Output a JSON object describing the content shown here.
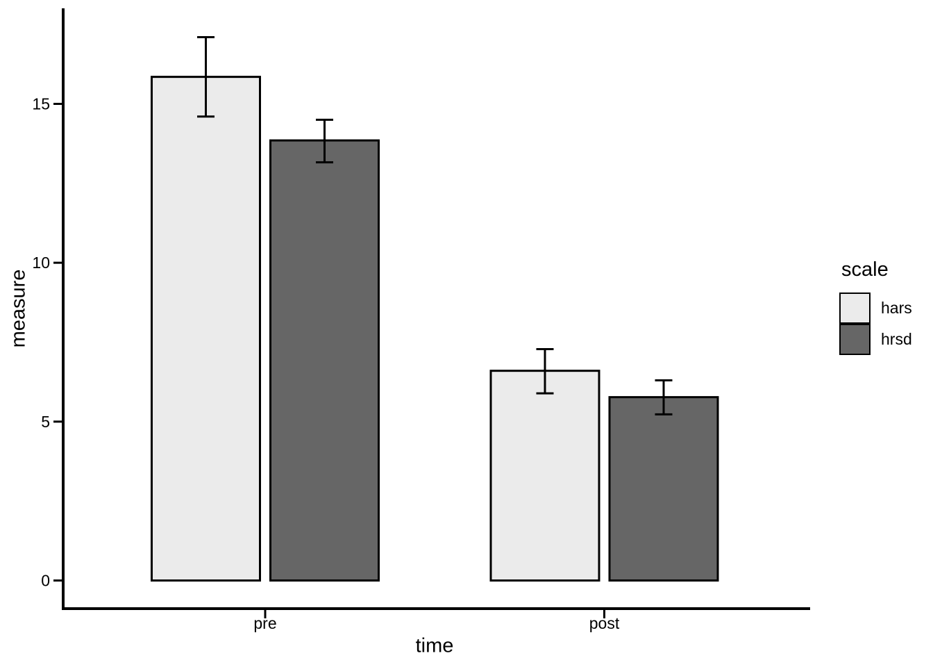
{
  "figure": {
    "background": "#FFFFFF"
  },
  "axes": {
    "y_title": "measure",
    "x_title": "time",
    "y_tick_labels": [
      "0",
      "5",
      "10",
      "15"
    ],
    "x_tick_labels": [
      "pre",
      "post"
    ]
  },
  "legend": {
    "title": "scale",
    "entries": [
      {
        "label": "hars",
        "color": "#EBEBEB"
      },
      {
        "label": "hrsd",
        "color": "#666666"
      }
    ]
  },
  "chart_data": {
    "type": "bar",
    "title": "",
    "xlabel": "time",
    "ylabel": "measure",
    "categories": [
      "pre",
      "post"
    ],
    "series": [
      {
        "name": "hars",
        "fill": "#EBEBEB",
        "values": [
          15.85,
          6.6
        ],
        "error_low": [
          14.6,
          5.89
        ],
        "error_high": [
          17.1,
          7.28
        ]
      },
      {
        "name": "hrsd",
        "fill": "#666666",
        "values": [
          13.85,
          5.77
        ],
        "error_low": [
          13.16,
          5.23
        ],
        "error_high": [
          14.5,
          6.3
        ]
      }
    ],
    "yticks": [
      0,
      5,
      10,
      15
    ],
    "ylim": [
      0,
      17.96
    ],
    "bar_outline": "#000000",
    "error_bar_color": "#000000",
    "axis_color": "#000000",
    "text_color": "#000000",
    "grid": false,
    "legend_position": "right"
  }
}
